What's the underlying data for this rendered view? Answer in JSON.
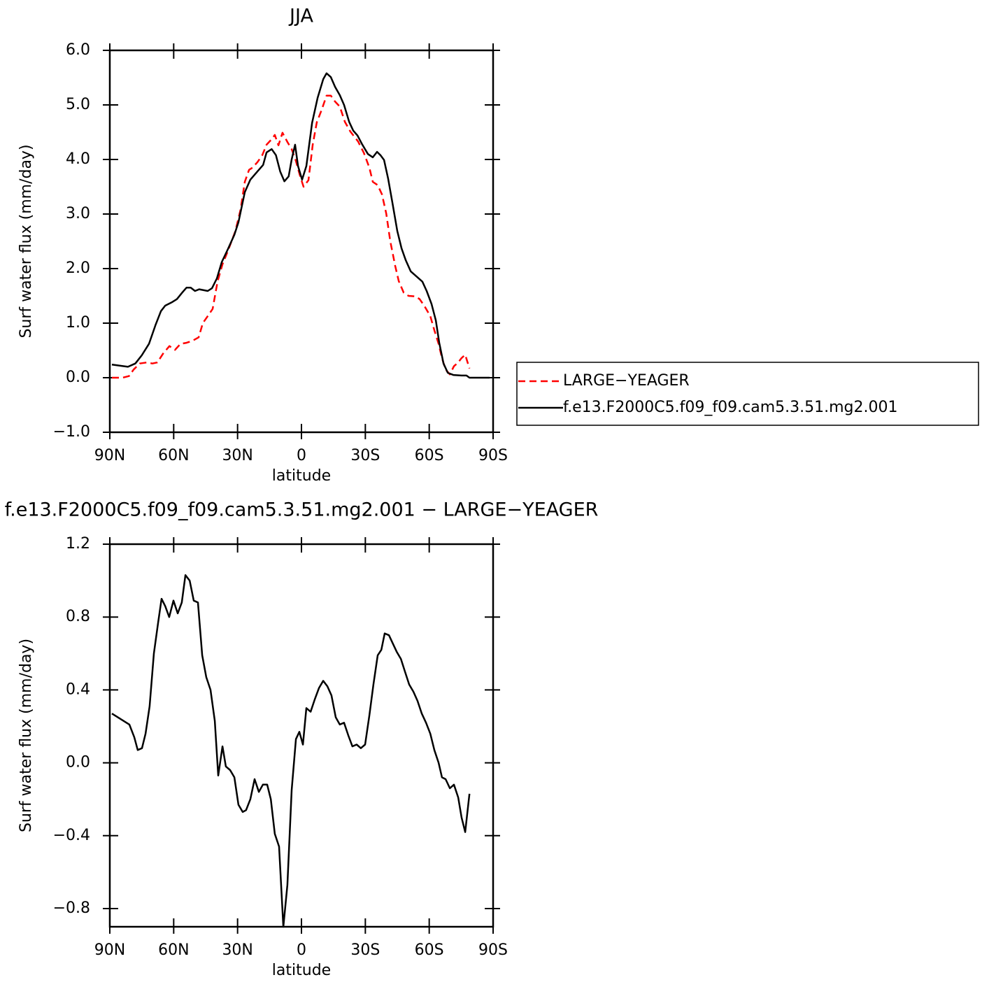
{
  "chart_data": [
    {
      "type": "line",
      "title": "JJA",
      "x_label": "latitude",
      "y_label": "Surf water flux (mm/day)",
      "xlim": [
        90,
        -90
      ],
      "xticks": [
        {
          "value": 90,
          "label": "90N"
        },
        {
          "value": 60,
          "label": "60N"
        },
        {
          "value": 30,
          "label": "30N"
        },
        0,
        {
          "value": -30,
          "label": "30S"
        },
        {
          "value": -60,
          "label": "60S"
        },
        {
          "value": -90,
          "label": "90S"
        }
      ],
      "ylim": [
        -1,
        6
      ],
      "yticks": [
        {
          "value": -1,
          "label": "−1.0"
        },
        {
          "value": 0,
          "label": "0.0"
        },
        {
          "value": 1,
          "label": "1.0"
        },
        {
          "value": 2,
          "label": "2.0"
        },
        {
          "value": 3,
          "label": "3.0"
        },
        {
          "value": 4,
          "label": "4.0"
        },
        {
          "value": 5,
          "label": "5.0"
        },
        {
          "value": 6,
          "label": "6.0"
        }
      ],
      "legend": "outside-right",
      "series": [
        {
          "name": "LARGE−YEAGER",
          "color": "#ff0000",
          "dashed": true,
          "x": [
            89,
            84,
            81,
            78.8,
            75.9,
            72.6,
            70,
            67.7,
            65,
            62,
            59.4,
            56.8,
            54,
            51,
            48.3,
            46.3,
            44,
            41.7,
            39.4,
            37.1,
            34.5,
            31,
            28.6,
            26.6,
            24.6,
            23,
            20.7,
            18.4,
            16.4,
            13.8,
            12.5,
            10.8,
            8.9,
            6.6,
            4.6,
            2.6,
            0.6,
            -1,
            -3.3,
            -5.3,
            -7.2,
            -9.5,
            -11.8,
            -13.8,
            -15.8,
            -18,
            -20.4,
            -23,
            -26.6,
            -29.3,
            -31.9,
            -33.5,
            -35.8,
            -37.8,
            -39.8,
            -41.7,
            -44,
            -45.7,
            -48,
            -50.3,
            -53.6,
            -55.5,
            -57.8,
            -60.5,
            -62.4,
            -64.4,
            -66,
            -67.7,
            -69.7,
            -71.6,
            -73.6,
            -75.2,
            -76.9,
            -78.9
          ],
          "values": [
            0,
            0,
            0.03,
            0.15,
            0.26,
            0.28,
            0.26,
            0.28,
            0.44,
            0.58,
            0.51,
            0.62,
            0.64,
            0.68,
            0.74,
            1.0,
            1.13,
            1.26,
            1.76,
            2.08,
            2.33,
            2.69,
            3.08,
            3.59,
            3.81,
            3.85,
            3.95,
            4.08,
            4.27,
            4.38,
            4.45,
            4.26,
            4.49,
            4.32,
            4.19,
            3.97,
            3.69,
            3.5,
            3.62,
            4.27,
            4.68,
            4.91,
            5.17,
            5.17,
            5.06,
            4.97,
            4.69,
            4.51,
            4.33,
            4.12,
            3.85,
            3.59,
            3.53,
            3.36,
            3.01,
            2.5,
            2.05,
            1.77,
            1.56,
            1.5,
            1.49,
            1.44,
            1.31,
            1.13,
            0.87,
            0.62,
            0.36,
            0.15,
            0.06,
            0.21,
            0.28,
            0.36,
            0.42,
            0.17
          ]
        },
        {
          "name": "f.e13.F2000C5.f09_f09.cam5.3.51.mg2.001",
          "color": "#000000",
          "dashed": false,
          "x": [
            89,
            81.5,
            78,
            75,
            71.6,
            68.6,
            66,
            64,
            61,
            58.5,
            56,
            54,
            52,
            50,
            48,
            44,
            42,
            39.7,
            37.4,
            34.5,
            31.5,
            29.6,
            26.6,
            24,
            20.7,
            18,
            16.4,
            14,
            12,
            10,
            8,
            6,
            4.6,
            3,
            1.6,
            -0.3,
            -2.3,
            -5,
            -7.6,
            -10.2,
            -11.8,
            -13.8,
            -15.8,
            -18,
            -20,
            -22.4,
            -24.3,
            -26.3,
            -28.6,
            -31.2,
            -33.5,
            -35.5,
            -37.1,
            -38.8,
            -40.7,
            -42.7,
            -45,
            -47,
            -49,
            -51.3,
            -54.2,
            -56.8,
            -58.8,
            -61.1,
            -63.1,
            -64.7,
            -66.7,
            -68.7,
            -71.3,
            -75.2,
            -77.5,
            -78.9,
            -81.8,
            -88.4
          ],
          "values": [
            0.24,
            0.2,
            0.26,
            0.41,
            0.62,
            0.96,
            1.22,
            1.32,
            1.38,
            1.44,
            1.56,
            1.65,
            1.65,
            1.59,
            1.62,
            1.59,
            1.64,
            1.82,
            2.12,
            2.36,
            2.62,
            2.85,
            3.4,
            3.63,
            3.78,
            3.9,
            4.13,
            4.19,
            4.08,
            3.78,
            3.6,
            3.69,
            4.0,
            4.27,
            3.88,
            3.63,
            3.88,
            4.67,
            5.13,
            5.47,
            5.58,
            5.51,
            5.33,
            5.18,
            5.0,
            4.69,
            4.53,
            4.44,
            4.27,
            4.1,
            4.04,
            4.14,
            4.08,
            3.99,
            3.65,
            3.21,
            2.69,
            2.37,
            2.15,
            1.95,
            1.85,
            1.76,
            1.59,
            1.35,
            1.05,
            0.64,
            0.26,
            0.09,
            0.05,
            0.04,
            0.04,
            0,
            0,
            0
          ]
        }
      ]
    },
    {
      "type": "line",
      "title": "f.e13.F2000C5.f09_f09.cam5.3.51.mg2.001 − LARGE−YEAGER",
      "x_label": "latitude",
      "y_label": "Surf water flux (mm/day)",
      "xlim": [
        90,
        -90
      ],
      "xticks": [
        {
          "value": 90,
          "label": "90N"
        },
        {
          "value": 60,
          "label": "60N"
        },
        {
          "value": 30,
          "label": "30N"
        },
        0,
        {
          "value": -30,
          "label": "30S"
        },
        {
          "value": -60,
          "label": "60S"
        },
        {
          "value": -90,
          "label": "90S"
        }
      ],
      "ylim": [
        -0.9,
        1.2
      ],
      "yticks": [
        {
          "value": -0.8,
          "label": "−0.8"
        },
        {
          "value": -0.4,
          "label": "−0.4"
        },
        {
          "value": 0,
          "label": "0.0"
        },
        0.4,
        0.8,
        1.2
      ],
      "series": [
        {
          "color": "#000000",
          "dashed": false,
          "x": [
            89,
            80.8,
            78.5,
            76.9,
            74.9,
            73.2,
            71.3,
            69.3,
            67.3,
            65.7,
            64,
            62.1,
            60.1,
            58.1,
            56.2,
            54.5,
            52.5,
            50.6,
            48.6,
            46.6,
            44.7,
            42.7,
            40.7,
            39.1,
            37.1,
            35.5,
            33.5,
            31.5,
            29.6,
            27.6,
            26,
            24,
            22,
            20,
            18.1,
            16.1,
            14.4,
            12.5,
            10.5,
            8.5,
            6.6,
            4.6,
            2.6,
            1,
            -0.7,
            -2.3,
            -4.3,
            -6.3,
            -8.2,
            -10.2,
            -12.2,
            -14.1,
            -16.1,
            -18,
            -20,
            -22,
            -23.9,
            -25.9,
            -27.9,
            -29.9,
            -31.9,
            -33.8,
            -35.8,
            -37.5,
            -39.1,
            -41.1,
            -42.7,
            -44.7,
            -46.7,
            -48.6,
            -50.6,
            -52.6,
            -54.5,
            -56.5,
            -58.5,
            -60.5,
            -62.4,
            -64.4,
            -66,
            -67.7,
            -69.7,
            -71.6,
            -73.6,
            -75.2,
            -76.9,
            -78.9
          ],
          "values": [
            0.27,
            0.21,
            0.14,
            0.07,
            0.08,
            0.16,
            0.31,
            0.6,
            0.77,
            0.9,
            0.86,
            0.8,
            0.89,
            0.82,
            0.88,
            1.03,
            1.0,
            0.89,
            0.88,
            0.59,
            0.47,
            0.4,
            0.23,
            -0.07,
            0.09,
            -0.02,
            -0.04,
            -0.08,
            -0.23,
            -0.27,
            -0.26,
            -0.2,
            -0.09,
            -0.16,
            -0.12,
            -0.12,
            -0.2,
            -0.39,
            -0.46,
            -0.9,
            -0.67,
            -0.15,
            0.13,
            0.17,
            0.1,
            0.3,
            0.28,
            0.35,
            0.41,
            0.45,
            0.42,
            0.37,
            0.25,
            0.21,
            0.22,
            0.15,
            0.09,
            0.1,
            0.08,
            0.1,
            0.26,
            0.43,
            0.59,
            0.62,
            0.71,
            0.7,
            0.66,
            0.61,
            0.57,
            0.5,
            0.43,
            0.39,
            0.34,
            0.27,
            0.22,
            0.16,
            0.07,
            0,
            -0.08,
            -0.09,
            -0.14,
            -0.12,
            -0.19,
            -0.3,
            -0.38,
            -0.17
          ]
        }
      ]
    }
  ]
}
